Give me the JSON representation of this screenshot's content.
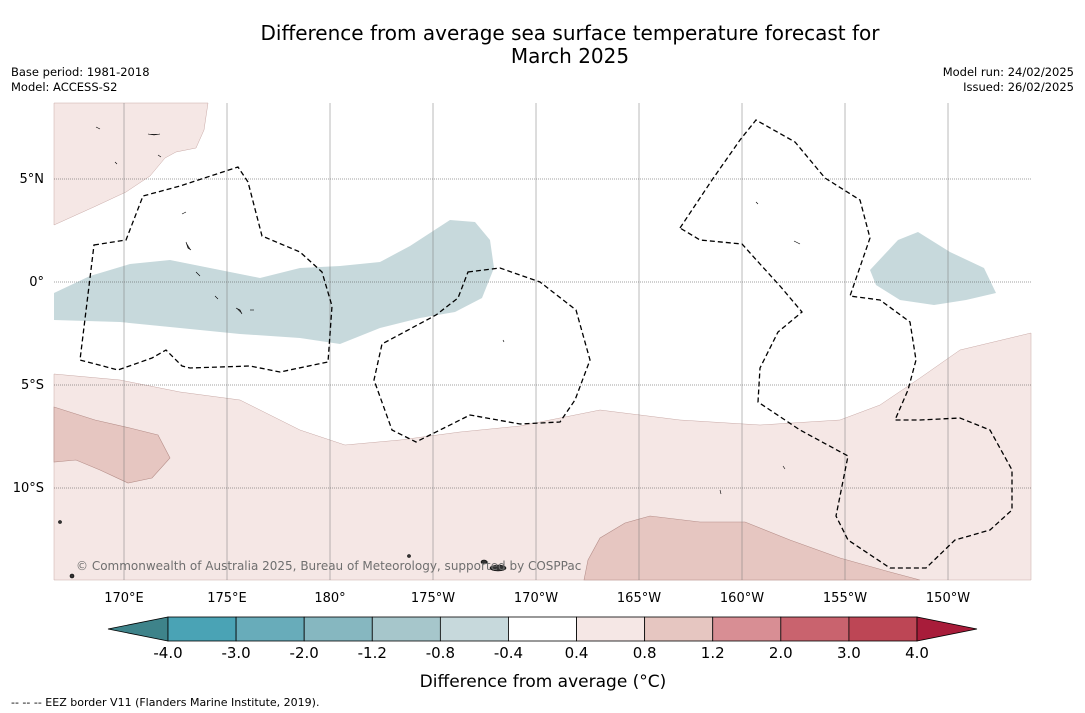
{
  "title_line1": "Difference from average sea surface temperature forecast for",
  "title_line2": "March 2025",
  "meta": {
    "base_period": "Base period: 1981-2018",
    "model": "Model: ACCESS-S2",
    "model_run": "Model run: 24/02/2025",
    "issued": "Issued: 26/02/2025"
  },
  "map": {
    "lat_labels": [
      "5°N",
      "0°",
      "5°S",
      "10°S"
    ],
    "lon_labels": [
      "170°E",
      "175°E",
      "180°",
      "175°W",
      "170°W",
      "165°W",
      "160°W",
      "155°W",
      "150°W"
    ],
    "copyright": "© Commonwealth of Australia 2025, Bureau of Meteorology, supported by COSPPac"
  },
  "colorbar": {
    "tick_labels": [
      "-4.0",
      "-3.0",
      "-2.0",
      "-1.2",
      "-0.8",
      "-0.4",
      "0.4",
      "0.8",
      "1.2",
      "2.0",
      "3.0",
      "4.0"
    ],
    "colors": [
      "#4aa3b5",
      "#68acba",
      "#86b7c0",
      "#a6c6cb",
      "#c7d9dc",
      "#ffffff",
      "#f5e7e5",
      "#e6c6c1",
      "#d88e94",
      "#c9636e",
      "#bd4655"
    ],
    "under_color": "#3e838a",
    "over_color": "#a81c3a",
    "label": "Difference from average (°C)"
  },
  "footnote": "--  --  -- EEZ border V11 (Flanders Marine Institute, 2019)."
}
